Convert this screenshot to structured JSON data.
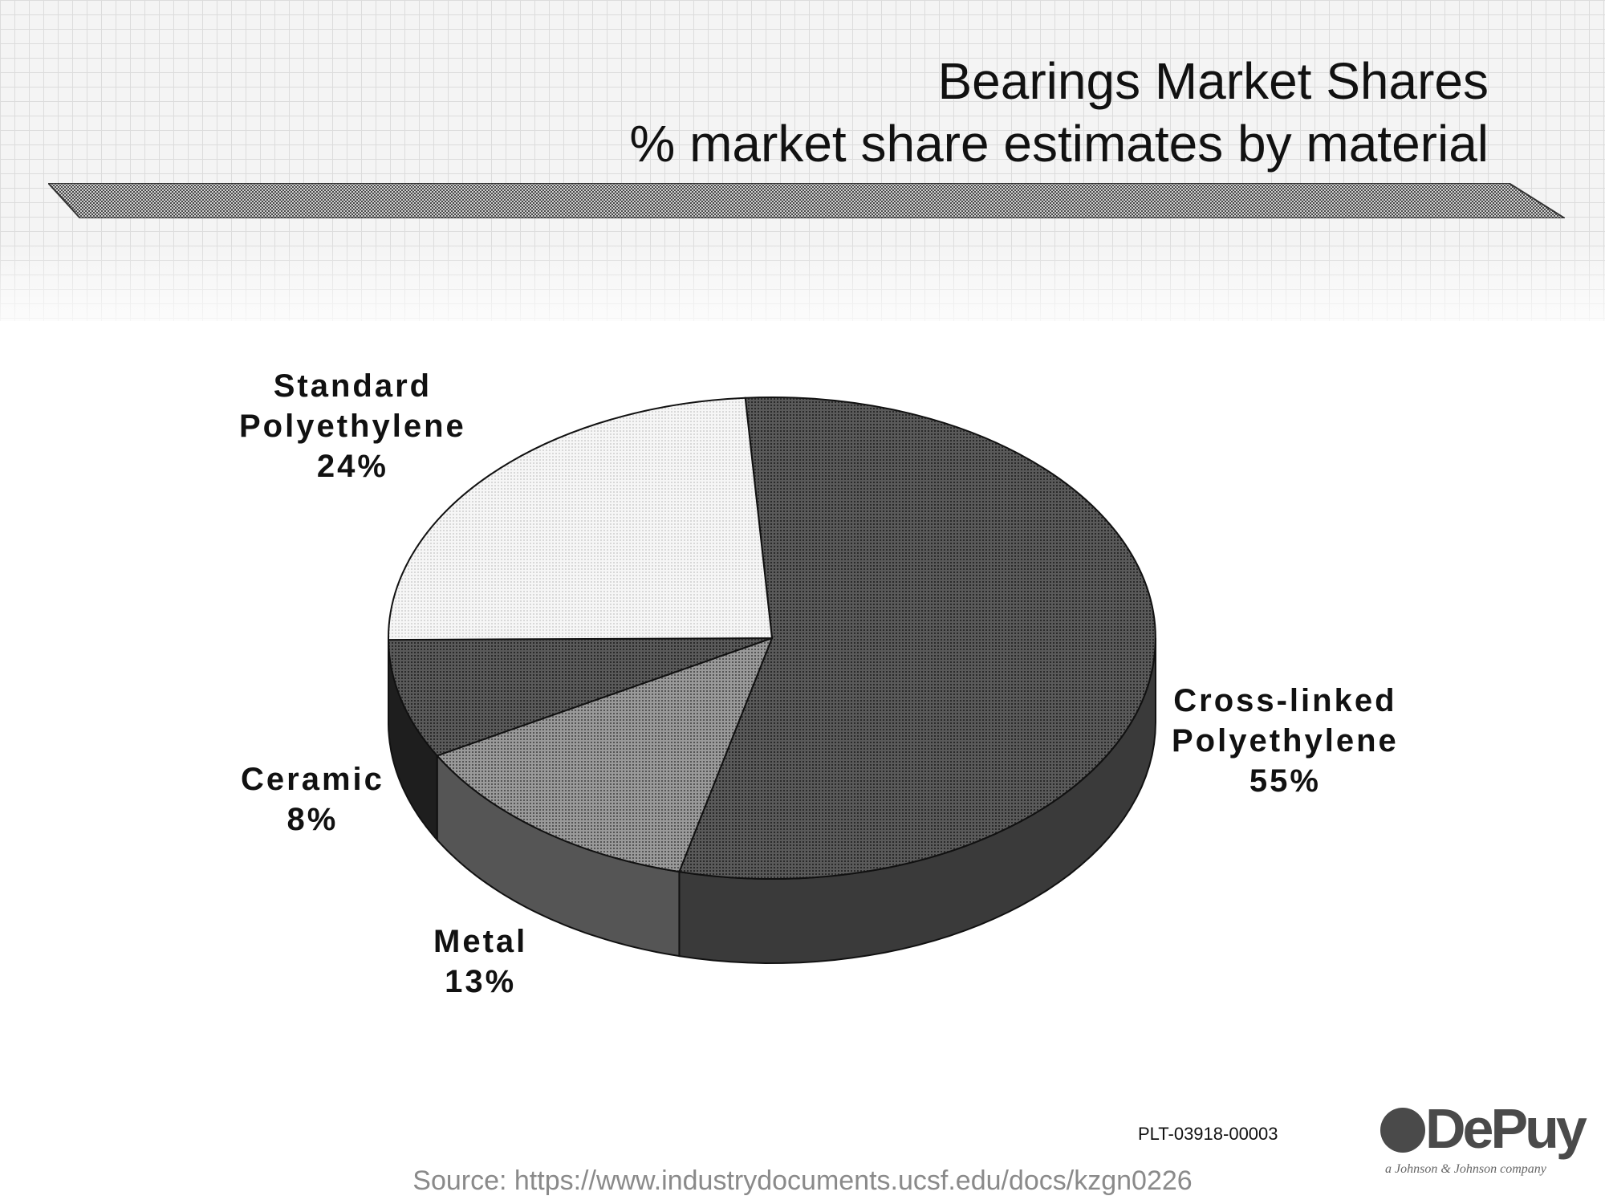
{
  "header": {
    "title": "Bearings Market Shares",
    "subtitle": "% market share estimates by material"
  },
  "chart_data": {
    "type": "pie",
    "title": "Bearings Market Shares",
    "subtitle": "% market share estimates by material",
    "categories": [
      "Cross-linked Polyethylene",
      "Metal",
      "Ceramic",
      "Standard Polyethylene"
    ],
    "values": [
      55,
      13,
      8,
      24
    ],
    "labels": [
      {
        "name_lines": [
          "Cross-linked",
          "Polyethylene"
        ],
        "pct": "55%"
      },
      {
        "name_lines": [
          "Metal"
        ],
        "pct": "13%"
      },
      {
        "name_lines": [
          "Ceramic"
        ],
        "pct": "8%"
      },
      {
        "name_lines": [
          "Standard",
          "Polyethylene"
        ],
        "pct": "24%"
      }
    ],
    "style": "3d",
    "colors": [
      "#6e6e6e",
      "#8c8c8c",
      "#3c3c3c",
      "#eeeeee"
    ],
    "legend": "none"
  },
  "footer": {
    "doc_id": "PLT-03918-00003",
    "logo_text": "DePuy",
    "logo_tagline": "a Johnson & Johnson company",
    "source": "Source: https://www.industrydocuments.ucsf.edu/docs/kzgn0226"
  },
  "icons": {
    "logo": "depuy-logo-icon"
  }
}
